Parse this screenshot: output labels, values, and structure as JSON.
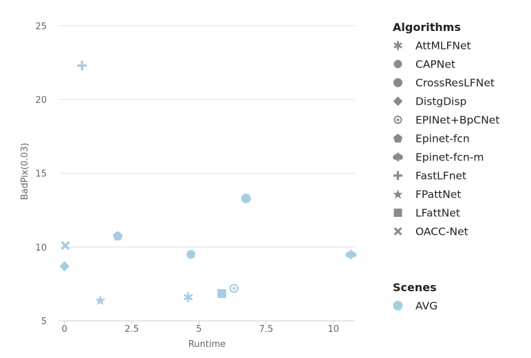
{
  "chart_data": {
    "type": "scatter",
    "xlabel": "Runtime",
    "ylabel": "BadPix(0.03)",
    "xlim": [
      -0.2,
      10.8
    ],
    "ylim": [
      5,
      26
    ],
    "x_ticks": [
      0,
      2.5,
      5,
      7.5,
      10
    ],
    "x_tick_labels": [
      "0",
      "2.5",
      "5",
      "7.5",
      "10"
    ],
    "y_ticks": [
      5,
      10,
      15,
      20,
      25
    ],
    "y_tick_labels": [
      "5",
      "10",
      "15",
      "20",
      "25"
    ],
    "grid": "horizontal",
    "point_color": "#a6cde4",
    "legend_placement": "right",
    "points": [
      {
        "algorithm": "AttMLFNet",
        "x": 4.6,
        "y": 6.6,
        "marker": "asterisk"
      },
      {
        "algorithm": "CAPNet",
        "x": 4.7,
        "y": 9.5,
        "marker": "burst"
      },
      {
        "algorithm": "CrossResLFNet",
        "x": 6.75,
        "y": 13.3,
        "marker": "circle"
      },
      {
        "algorithm": "DistgDisp",
        "x": 0.0,
        "y": 8.7,
        "marker": "diamond"
      },
      {
        "algorithm": "EPINet+BpCNet",
        "x": 6.3,
        "y": 7.2,
        "marker": "ring"
      },
      {
        "algorithm": "Epinet-fcn",
        "x": 1.98,
        "y": 10.75,
        "marker": "pentagon"
      },
      {
        "algorithm": "Epinet-fcn-m",
        "x": 10.65,
        "y": 9.5,
        "marker": "spade"
      },
      {
        "algorithm": "FastLFnet",
        "x": 0.65,
        "y": 22.3,
        "marker": "plus"
      },
      {
        "algorithm": "FPattNet",
        "x": 1.33,
        "y": 6.4,
        "marker": "star"
      },
      {
        "algorithm": "LFattNet",
        "x": 5.85,
        "y": 6.85,
        "marker": "square"
      },
      {
        "algorithm": "OACC-Net",
        "x": 0.03,
        "y": 10.1,
        "marker": "cross"
      }
    ],
    "legend": {
      "algorithms_title": "Algorithms",
      "algorithms": [
        {
          "label": "AttMLFNet",
          "marker": "asterisk",
          "icon": "asterisk-icon"
        },
        {
          "label": "CAPNet",
          "marker": "burst",
          "icon": "burst-icon"
        },
        {
          "label": "CrossResLFNet",
          "marker": "circle",
          "icon": "circle-icon"
        },
        {
          "label": "DistgDisp",
          "marker": "diamond",
          "icon": "diamond-icon"
        },
        {
          "label": "EPINet+BpCNet",
          "marker": "ring",
          "icon": "ring-icon"
        },
        {
          "label": "Epinet-fcn",
          "marker": "pentagon",
          "icon": "pentagon-icon"
        },
        {
          "label": "Epinet-fcn-m",
          "marker": "spade",
          "icon": "spade-icon"
        },
        {
          "label": "FastLFnet",
          "marker": "plus",
          "icon": "plus-icon"
        },
        {
          "label": "FPattNet",
          "marker": "star",
          "icon": "star-icon"
        },
        {
          "label": "LFattNet",
          "marker": "square",
          "icon": "square-icon"
        },
        {
          "label": "OACC-Net",
          "marker": "cross",
          "icon": "cross-icon"
        }
      ],
      "algorithm_marker_color": "#8a8a8a",
      "scenes_title": "Scenes",
      "scenes": [
        {
          "label": "AVG",
          "color": "#a6cde4",
          "marker": "circle"
        }
      ]
    }
  }
}
